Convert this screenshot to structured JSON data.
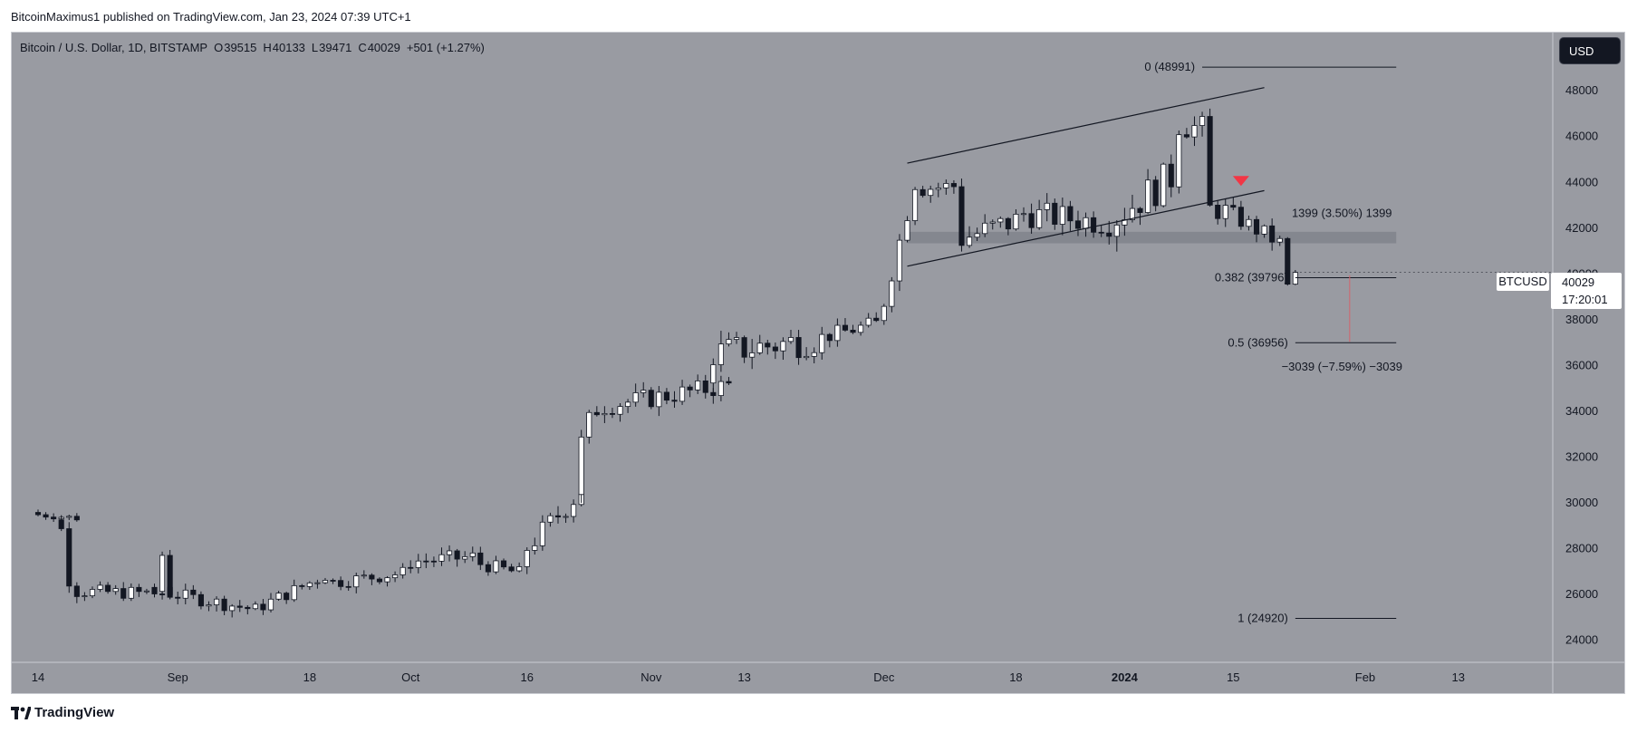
{
  "header": {
    "publisher_line": "BitcoinMaximus1 published on TradingView.com, Jan 23, 2024 07:39 UTC+1"
  },
  "legend": {
    "symbol_title": "Bitcoin / U.S. Dollar, 1D, BITSTAMP",
    "open_label": "O",
    "open": "39515",
    "high_label": "H",
    "high": "40133",
    "low_label": "L",
    "low": "39471",
    "close_label": "C",
    "close": "40029",
    "change": "+501 (+1.27%)"
  },
  "toolbar": {
    "currency": "USD"
  },
  "price_badge": {
    "symbol": "BTCUSD",
    "price": "40029",
    "countdown": "17:20:01"
  },
  "footer": {
    "brand": "TradingView"
  },
  "colors": {
    "background": "#999ba2",
    "candle_up": "#ffffff",
    "candle_down": "#131722",
    "annotation": "#131722",
    "marker": "#f23645",
    "support_zone": "#7d8088",
    "measure_line": "#d4636d"
  },
  "chart_data": {
    "type": "candlestick",
    "title": "Bitcoin / U.S. Dollar, 1D, BITSTAMP",
    "x_range": [
      "2023-08-14",
      "2024-02-24"
    ],
    "ylim": [
      23000,
      50500
    ],
    "y_ticks": [
      24000,
      26000,
      28000,
      30000,
      32000,
      34000,
      36000,
      38000,
      40000,
      42000,
      44000,
      46000,
      48000
    ],
    "x_ticks": [
      {
        "date": "2023-08-14",
        "label": "14"
      },
      {
        "date": "2023-09-01",
        "label": "Sep"
      },
      {
        "date": "2023-09-18",
        "label": "18"
      },
      {
        "date": "2023-10-01",
        "label": "Oct"
      },
      {
        "date": "2023-10-16",
        "label": "16"
      },
      {
        "date": "2023-11-01",
        "label": "Nov"
      },
      {
        "date": "2023-11-13",
        "label": "13"
      },
      {
        "date": "2023-12-01",
        "label": "Dec"
      },
      {
        "date": "2023-12-18",
        "label": "18"
      },
      {
        "date": "2024-01-01",
        "label": "2024"
      },
      {
        "date": "2024-01-15",
        "label": "15"
      },
      {
        "date": "2024-02-01",
        "label": "Feb"
      },
      {
        "date": "2024-02-13",
        "label": "13"
      }
    ],
    "grid": false,
    "segments": [
      {
        "start": "2023-08-14",
        "days": 6,
        "from": 29450,
        "to": 29300,
        "noise": 150
      },
      {
        "start": "2023-08-17",
        "days": 2,
        "from": 28800,
        "to": 26600,
        "noise": 300
      },
      {
        "start": "2023-08-19",
        "days": 13,
        "from": 26100,
        "to": 26000,
        "noise": 300
      },
      {
        "start": "2023-08-29",
        "days": 2,
        "from": 26100,
        "to": 27700,
        "noise": 300
      },
      {
        "start": "2023-08-31",
        "days": 12,
        "from": 26000,
        "to": 25300,
        "noise": 300
      },
      {
        "start": "2023-09-12",
        "days": 9,
        "from": 25500,
        "to": 26800,
        "noise": 300
      },
      {
        "start": "2023-09-21",
        "days": 10,
        "from": 26500,
        "to": 26900,
        "noise": 300
      },
      {
        "start": "2023-10-01",
        "days": 9,
        "from": 27400,
        "to": 27600,
        "noise": 350
      },
      {
        "start": "2023-10-10",
        "days": 6,
        "from": 27300,
        "to": 26900,
        "noise": 300
      },
      {
        "start": "2023-10-16",
        "days": 8,
        "from": 28000,
        "to": 30500,
        "noise": 500
      },
      {
        "start": "2023-10-23",
        "days": 3,
        "from": 32500,
        "to": 34200,
        "noise": 700
      },
      {
        "start": "2023-10-26",
        "days": 17,
        "from": 34200,
        "to": 35100,
        "noise": 450
      },
      {
        "start": "2023-11-09",
        "days": 14,
        "from": 36500,
        "to": 37100,
        "noise": 700
      },
      {
        "start": "2023-11-23",
        "days": 8,
        "from": 37200,
        "to": 37800,
        "noise": 350
      },
      {
        "start": "2023-12-01",
        "days": 5,
        "from": 38800,
        "to": 44000,
        "noise": 500
      },
      {
        "start": "2023-12-06",
        "days": 5,
        "from": 43700,
        "to": 43800,
        "noise": 400
      },
      {
        "start": "2023-12-11",
        "days": 8,
        "from": 41500,
        "to": 42300,
        "noise": 600
      },
      {
        "start": "2023-12-19",
        "days": 12,
        "from": 42600,
        "to": 42200,
        "noise": 600
      },
      {
        "start": "2023-12-31",
        "days": 8,
        "from": 42500,
        "to": 44200,
        "noise": 800
      },
      {
        "start": "2024-01-08",
        "days": 4,
        "from": 46500,
        "to": 46300,
        "noise": 600
      },
      {
        "start": "2024-01-12",
        "days": 3,
        "from": 42800,
        "to": 42700,
        "noise": 500
      },
      {
        "start": "2024-01-15",
        "days": 7,
        "from": 42500,
        "to": 41300,
        "noise": 400
      },
      {
        "start": "2024-01-22",
        "days": 1,
        "from": 39515,
        "to": 39515,
        "noise": 0
      },
      {
        "start": "2024-01-23",
        "days": 1,
        "from": 40029,
        "to": 40029,
        "noise": 0
      }
    ],
    "last_candle": {
      "date": "2024-01-23",
      "open": 39515,
      "high": 40133,
      "low": 39471,
      "close": 40029
    },
    "channel": {
      "upper": [
        {
          "date": "2023-12-04",
          "price": 44800
        },
        {
          "date": "2024-01-19",
          "price": 48100
        }
      ],
      "lower": [
        {
          "date": "2023-12-04",
          "price": 40300
        },
        {
          "date": "2024-01-19",
          "price": 43600
        }
      ]
    },
    "support_zone": {
      "from": "2023-12-04",
      "to": "2024-02-05",
      "low": 41300,
      "high": 41800
    },
    "fib_levels": [
      {
        "label": "0 (48991)",
        "price": 48991,
        "from": "2024-01-11",
        "to": "2024-02-05"
      },
      {
        "label": "0.382 (39796)",
        "price": 39796,
        "from": "2024-01-23",
        "to": "2024-02-05"
      },
      {
        "label": "0.5 (36956)",
        "price": 36956,
        "from": "2024-01-23",
        "to": "2024-02-05"
      },
      {
        "label": "1 (24920)",
        "price": 24920,
        "from": "2024-01-23",
        "to": "2024-02-05"
      }
    ],
    "measures": [
      {
        "label": "1399 (3.50%) 1399",
        "date": "2024-01-29",
        "price": 42600
      },
      {
        "label": "−3039 (−7.59%) −3039",
        "date": "2024-01-29",
        "price": 35900
      }
    ],
    "marker": {
      "date": "2024-01-16",
      "price": 44000,
      "type": "down-triangle"
    }
  }
}
